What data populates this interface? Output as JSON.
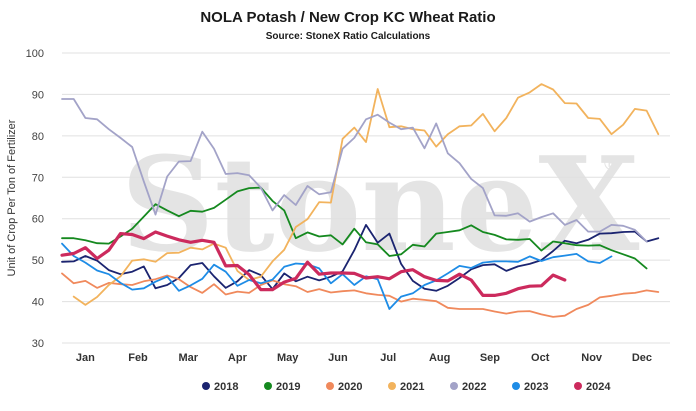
{
  "chart_data": {
    "type": "line",
    "title": "NOLA Potash / New Crop KC Wheat Ratio",
    "subtitle": "Source: StoneX Ratio Calculations",
    "watermark": "StoneX",
    "watermark_mark": "®",
    "ylabel": "Unit of Crop Per Ton of Fertilizer",
    "xlabel": "",
    "ylim": [
      30,
      100
    ],
    "xlim": [
      0,
      52
    ],
    "y_ticks": [
      30,
      40,
      50,
      60,
      70,
      80,
      90,
      100
    ],
    "x_ticks": [
      {
        "label": "Jan",
        "week": 2
      },
      {
        "label": "Feb",
        "week": 6.5
      },
      {
        "label": "Mar",
        "week": 10.8
      },
      {
        "label": "Apr",
        "week": 15
      },
      {
        "label": "May",
        "week": 19.3
      },
      {
        "label": "Jun",
        "week": 23.6
      },
      {
        "label": "Jul",
        "week": 27.9
      },
      {
        "label": "Aug",
        "week": 32.3
      },
      {
        "label": "Sep",
        "week": 36.6
      },
      {
        "label": "Oct",
        "week": 40.9
      },
      {
        "label": "Nov",
        "week": 45.3
      },
      {
        "label": "Dec",
        "week": 49.6
      }
    ],
    "grid": "horizontal",
    "legend_position": "bottom",
    "series": [
      {
        "name": "2018",
        "color": "#1b2470",
        "start_week": 0,
        "values": [
          49.6,
          49.7,
          51.0,
          49.9,
          47.6,
          46.6,
          47.2,
          48.5,
          43.2,
          44.0,
          45.7,
          48.8,
          49.3,
          46.1,
          43.3,
          44.9,
          47.6,
          46.4,
          43.0,
          46.8,
          44.9,
          46.0,
          45.1,
          46.0,
          47.3,
          52.4,
          58.5,
          54.2,
          56.4,
          49.1,
          45.0,
          43.1,
          42.6,
          43.8,
          45.7,
          47.8,
          48.8,
          49.0,
          47.4,
          48.5,
          49.1,
          50.0,
          52.2,
          54.7,
          54.1,
          54.9,
          56.4,
          56.5,
          56.8,
          56.9,
          54.5,
          55.3
        ]
      },
      {
        "name": "2019",
        "color": "#15891f",
        "start_week": 0,
        "values": [
          55.3,
          55.3,
          54.8,
          54.1,
          54.0,
          55.7,
          57.6,
          60.5,
          63.5,
          62.0,
          60.6,
          61.9,
          61.7,
          62.6,
          64.6,
          66.6,
          67.4,
          67.5,
          64.3,
          62.0,
          55.3,
          56.7,
          55.7,
          56.0,
          53.8,
          57.6,
          54.3,
          53.8,
          51.0,
          51.4,
          53.7,
          53.3,
          56.4,
          56.8,
          57.2,
          58.4,
          56.8,
          56.1,
          55.0,
          54.9,
          55.1,
          52.3,
          54.5,
          54.1,
          53.6,
          53.5,
          53.6,
          52.4,
          51.4,
          50.4,
          48.0
        ]
      },
      {
        "name": "2020",
        "color": "#f0895c",
        "start_week": 0,
        "values": [
          46.8,
          44.4,
          45.0,
          43.3,
          44.5,
          44.2,
          44.0,
          44.9,
          45.4,
          46.3,
          45.4,
          43.5,
          42.1,
          44.2,
          41.7,
          42.4,
          42.1,
          44.0,
          45.1,
          44.2,
          43.7,
          42.3,
          43.0,
          42.2,
          42.5,
          42.7,
          42.0,
          41.6,
          41.4,
          40.0,
          40.7,
          40.4,
          40.1,
          38.5,
          38.2,
          38.2,
          38.2,
          37.6,
          37.1,
          37.6,
          37.7,
          36.9,
          36.3,
          36.6,
          38.2,
          39.2,
          41.0,
          41.4,
          41.9,
          42.1,
          42.7,
          42.3
        ]
      },
      {
        "name": "2021",
        "color": "#f2b35d",
        "start_week": 1,
        "values": [
          41.2,
          39.2,
          41.1,
          44.0,
          46.1,
          49.9,
          50.2,
          49.6,
          51.7,
          51.8,
          53.0,
          52.6,
          54.0,
          53.0,
          47.4,
          45.2,
          46.0,
          49.7,
          52.5,
          58.0,
          59.9,
          64.0,
          63.9,
          79.3,
          82.0,
          78.5,
          91.3,
          82.1,
          82.3,
          81.6,
          81.3,
          77.4,
          80.4,
          82.3,
          82.5,
          85.3,
          81.1,
          84.3,
          89.2,
          90.5,
          92.5,
          91.2,
          87.9,
          87.8,
          84.3,
          84.1,
          80.4,
          82.7,
          86.5,
          86.1,
          80.4
        ]
      },
      {
        "name": "2022",
        "color": "#a3a3c8",
        "start_week": 0,
        "values": [
          88.9,
          88.9,
          84.3,
          84.0,
          81.6,
          79.5,
          77.3,
          69.0,
          61.0,
          70.2,
          73.8,
          73.9,
          81.0,
          76.9,
          70.8,
          71.0,
          70.5,
          67.5,
          62.0,
          65.7,
          63.3,
          67.9,
          65.9,
          66.4,
          76.9,
          79.5,
          84.0,
          85.1,
          83.2,
          81.6,
          82.0,
          77.0,
          83.0,
          75.8,
          73.4,
          69.6,
          67.4,
          60.8,
          60.7,
          61.3,
          59.3,
          60.4,
          61.3,
          58.5,
          59.7,
          56.9,
          56.9,
          58.5,
          58.3,
          57.3,
          54.5
        ]
      },
      {
        "name": "2023",
        "color": "#1e8ce6",
        "start_week": 0,
        "values": [
          54.0,
          51.0,
          49.4,
          47.5,
          46.6,
          44.5,
          42.9,
          43.2,
          44.8,
          46.0,
          42.6,
          43.9,
          45.5,
          48.9,
          47.2,
          43.8,
          45.2,
          44.4,
          45.3,
          48.4,
          49.2,
          49.0,
          48.0,
          44.4,
          46.6,
          44.0,
          46.1,
          45.4,
          38.2,
          41.2,
          42.0,
          44.0,
          45.1,
          46.8,
          48.6,
          48.1,
          49.4,
          49.7,
          49.7,
          49.6,
          50.9,
          49.8,
          50.7,
          51.1,
          51.5,
          49.7,
          49.3,
          50.9
        ]
      },
      {
        "name": "2024",
        "color": "#cc2a5d",
        "start_week": 0,
        "values": [
          51.2,
          51.6,
          53.0,
          50.4,
          52.4,
          56.4,
          56.2,
          55.2,
          56.8,
          55.8,
          54.9,
          54.3,
          54.8,
          54.3,
          48.6,
          48.7,
          46.5,
          42.9,
          42.9,
          44.7,
          45.6,
          49.5,
          46.6,
          46.9,
          46.9,
          46.8,
          45.7,
          46.0,
          45.5,
          47.2,
          47.7,
          46.0,
          45.1,
          45.0,
          46.6,
          45.2,
          41.5,
          41.5,
          42.0,
          43.1,
          43.7,
          43.8,
          46.4,
          45.2
        ]
      }
    ]
  }
}
